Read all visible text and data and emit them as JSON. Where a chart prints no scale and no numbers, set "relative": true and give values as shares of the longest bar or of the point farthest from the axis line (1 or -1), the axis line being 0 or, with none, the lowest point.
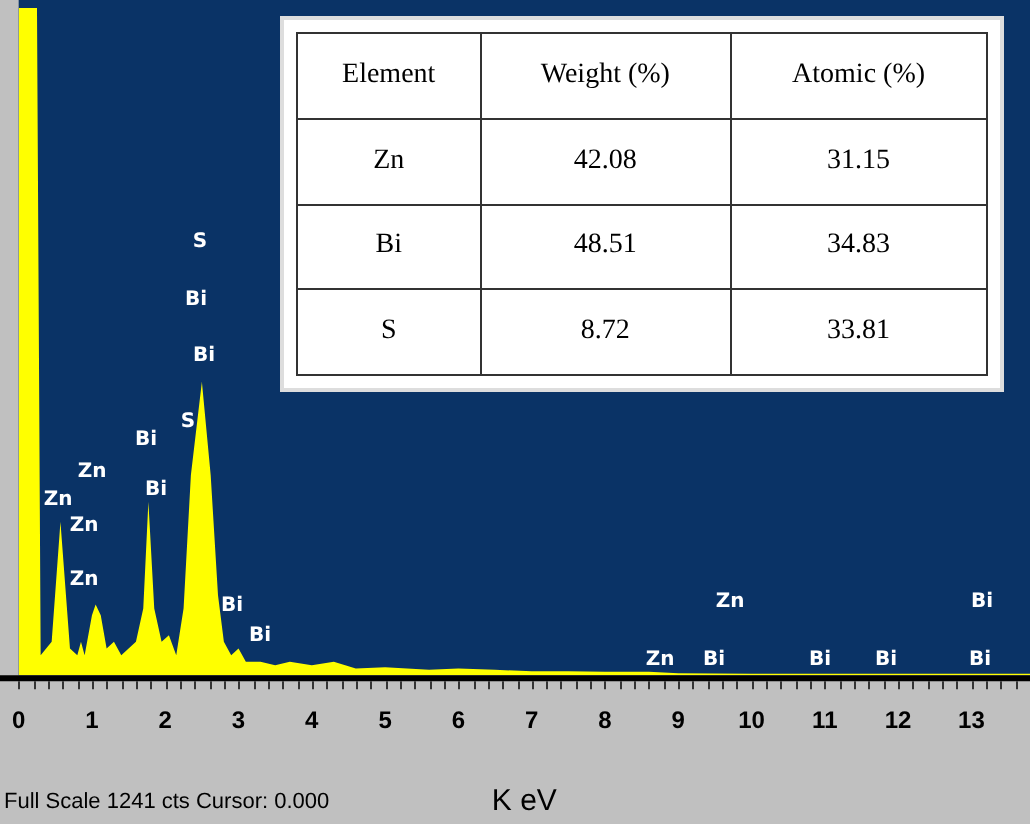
{
  "chart_data": [
    {
      "type": "area",
      "xlabel": "K eV",
      "relative": true,
      "legend": false,
      "grid": false,
      "x": [
        0,
        0.25,
        0.3,
        0.45,
        0.57,
        0.7,
        0.8,
        0.85,
        0.9,
        1.0,
        1.05,
        1.12,
        1.2,
        1.3,
        1.4,
        1.5,
        1.6,
        1.7,
        1.77,
        1.85,
        1.95,
        2.05,
        2.15,
        2.25,
        2.35,
        2.5,
        2.62,
        2.72,
        2.8,
        2.9,
        3.0,
        3.1,
        3.3,
        3.5,
        3.7,
        4,
        4.3,
        4.6,
        5,
        5.3,
        5.6,
        6,
        6.5,
        7,
        7.5,
        8,
        8.6,
        9,
        10,
        13.8
      ],
      "series": [
        {
          "color": "#ffff00",
          "values": [
            1,
            1,
            0.03,
            0.05,
            0.23,
            0.04,
            0.03,
            0.05,
            0.03,
            0.09,
            0.106,
            0.09,
            0.04,
            0.05,
            0.03,
            0.04,
            0.05,
            0.1,
            0.26,
            0.1,
            0.05,
            0.06,
            0.03,
            0.1,
            0.3,
            0.44,
            0.3,
            0.12,
            0.05,
            0.03,
            0.04,
            0.02,
            0.02,
            0.015,
            0.02,
            0.015,
            0.02,
            0.01,
            0.012,
            0.01,
            0.008,
            0.01,
            0.008,
            0.006,
            0.006,
            0.005,
            0.005,
            0.003,
            0.002,
            0.002
          ]
        }
      ],
      "xlim": [
        0,
        13.8
      ],
      "xticks": [
        0,
        1,
        2,
        3,
        4,
        5,
        6,
        7,
        8,
        9,
        10,
        11,
        12,
        13
      ],
      "annotations": [
        "Zn",
        "Zn",
        "Zn",
        "Zn",
        "Bi",
        "Bi",
        "S",
        "Bi",
        "Bi",
        "S",
        "Bi",
        "Bi",
        "Zn",
        "Zn",
        "Bi",
        "Bi",
        "Bi",
        "Bi",
        "Bi",
        "Full Scale 1241 cts Cursor: 0.000"
      ]
    },
    {
      "type": "other",
      "annotations": [
        "Element",
        "Weight (%)",
        "Atomic (%)",
        "Zn",
        "42.08",
        "31.15",
        "Bi",
        "48.51",
        "34.83",
        "S",
        "8.72",
        "33.81"
      ]
    }
  ]
}
